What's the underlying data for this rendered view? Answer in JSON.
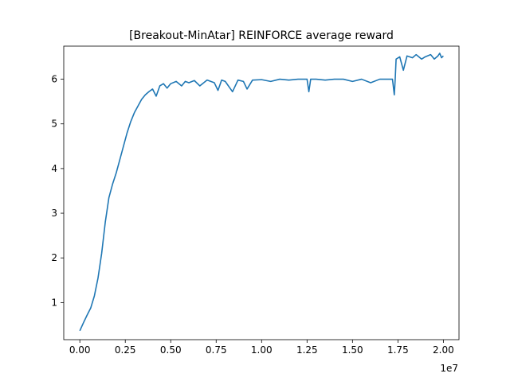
{
  "chart_data": {
    "type": "line",
    "title": "[Breakout-MinAtar] REINFORCE average reward",
    "xlabel": "",
    "ylabel": "",
    "x_offset_label": "1e7",
    "x_scale": 10000000,
    "xlim": [
      -0.0885,
      2.086
    ],
    "ylim": [
      0.17,
      6.74
    ],
    "x_ticks": [
      0.0,
      0.25,
      0.5,
      0.75,
      1.0,
      1.25,
      1.5,
      1.75,
      2.0
    ],
    "x_tick_labels": [
      "0.00",
      "0.25",
      "0.50",
      "0.75",
      "1.00",
      "1.25",
      "1.50",
      "1.75",
      "2.00"
    ],
    "y_ticks": [
      1,
      2,
      3,
      4,
      5,
      6
    ],
    "y_tick_labels": [
      "1",
      "2",
      "3",
      "4",
      "5",
      "6"
    ],
    "grid": false,
    "legend": "none",
    "series": [
      {
        "color": "#1f77b4",
        "x": [
          0.0,
          0.02,
          0.04,
          0.06,
          0.08,
          0.1,
          0.12,
          0.14,
          0.16,
          0.18,
          0.2,
          0.22,
          0.24,
          0.26,
          0.28,
          0.3,
          0.32,
          0.34,
          0.36,
          0.38,
          0.4,
          0.42,
          0.44,
          0.46,
          0.48,
          0.5,
          0.53,
          0.56,
          0.58,
          0.6,
          0.63,
          0.66,
          0.7,
          0.74,
          0.76,
          0.78,
          0.8,
          0.84,
          0.87,
          0.9,
          0.92,
          0.95,
          1.0,
          1.05,
          1.1,
          1.15,
          1.2,
          1.25,
          1.26,
          1.27,
          1.3,
          1.35,
          1.4,
          1.45,
          1.5,
          1.55,
          1.6,
          1.65,
          1.7,
          1.72,
          1.73,
          1.735,
          1.74,
          1.76,
          1.78,
          1.8,
          1.83,
          1.85,
          1.88,
          1.9,
          1.93,
          1.95,
          1.97,
          1.98,
          1.99,
          2.0
        ],
        "y": [
          0.37,
          0.55,
          0.72,
          0.88,
          1.15,
          1.55,
          2.1,
          2.8,
          3.35,
          3.65,
          3.9,
          4.2,
          4.5,
          4.8,
          5.05,
          5.25,
          5.4,
          5.55,
          5.65,
          5.72,
          5.78,
          5.62,
          5.85,
          5.9,
          5.8,
          5.9,
          5.95,
          5.85,
          5.95,
          5.92,
          5.97,
          5.85,
          5.98,
          5.92,
          5.75,
          5.98,
          5.95,
          5.72,
          5.98,
          5.95,
          5.78,
          5.98,
          5.99,
          5.95,
          6.0,
          5.98,
          6.0,
          6.0,
          5.72,
          6.0,
          6.0,
          5.98,
          6.0,
          6.0,
          5.95,
          6.0,
          5.92,
          6.0,
          6.0,
          6.0,
          5.65,
          6.0,
          6.45,
          6.5,
          6.2,
          6.52,
          6.48,
          6.55,
          6.45,
          6.5,
          6.55,
          6.45,
          6.52,
          6.58,
          6.48,
          6.52
        ]
      }
    ]
  }
}
